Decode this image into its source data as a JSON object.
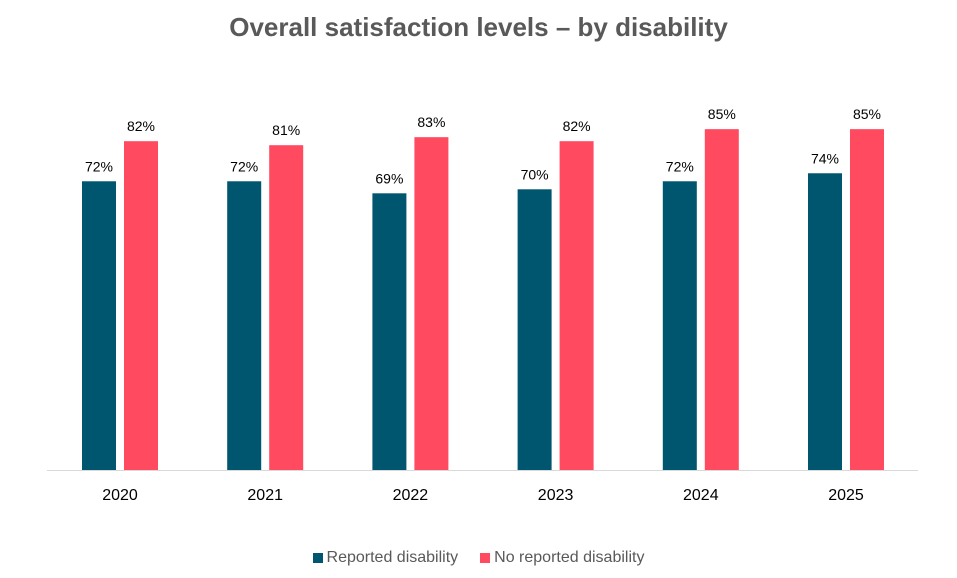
{
  "chart_data": {
    "type": "bar",
    "title": "Overall satisfaction levels – by disability",
    "categories": [
      "2020",
      "2021",
      "2022",
      "2023",
      "2024",
      "2025"
    ],
    "series": [
      {
        "name": "Reported disability",
        "color": "#00566e",
        "values": [
          72,
          72,
          69,
          70,
          72,
          74
        ],
        "labels": [
          "72%",
          "72%",
          "69%",
          "70%",
          "72%",
          "74%"
        ]
      },
      {
        "name": "No reported disability",
        "color": "#ff4a5f",
        "values": [
          82,
          81,
          83,
          82,
          85,
          85
        ],
        "labels": [
          "82%",
          "81%",
          "83%",
          "82%",
          "85%",
          "85%"
        ]
      }
    ],
    "ylim": [
      0,
      100
    ],
    "grid": false,
    "legend": "bottom",
    "xlabel": "",
    "ylabel": ""
  }
}
